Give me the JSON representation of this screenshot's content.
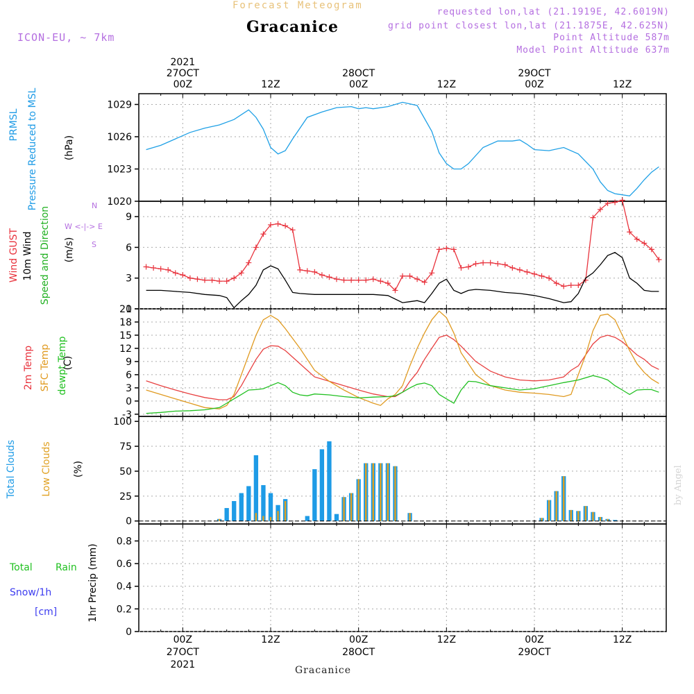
{
  "header": {
    "subtitle": "Forecast Meteogram",
    "location": "Gracanice",
    "model": "ICON-EU, ~ 7km",
    "info": [
      "requested lon,lat (21.1919E, 42.6019N)",
      "grid point closest lon,lat (21.1875E, 42.625N)",
      "Point Altitude 587m",
      "Model Point Altitude 637m"
    ]
  },
  "time_axis": {
    "top": [
      {
        "lines": [
          "2021",
          "27OCT",
          "00Z"
        ]
      },
      {
        "lines": [
          "12Z"
        ]
      },
      {
        "lines": [
          "28OCT",
          "00Z"
        ]
      },
      {
        "lines": [
          "12Z"
        ]
      },
      {
        "lines": [
          "29OCT",
          "00Z"
        ]
      },
      {
        "lines": [
          "12Z"
        ]
      }
    ],
    "bottom": [
      {
        "lines": [
          "00Z",
          "27OCT",
          "2021"
        ]
      },
      {
        "lines": [
          "12Z"
        ]
      },
      {
        "lines": [
          "00Z",
          "28OCT"
        ]
      },
      {
        "lines": [
          "12Z"
        ]
      },
      {
        "lines": [
          "00Z",
          "29OCT"
        ]
      },
      {
        "lines": [
          "12Z"
        ]
      }
    ],
    "hours": [
      0,
      12,
      24,
      36,
      48,
      60
    ]
  },
  "footer": {
    "location": "Gracanice",
    "watermark": "by Angel"
  },
  "panels": {
    "pressure": {
      "labels": [
        "PRMSL",
        "Pressure Reduced to MSL",
        "(hPa)"
      ],
      "label_colors": [
        "#1e9be6",
        "#1e9be6",
        "#000000"
      ]
    },
    "wind": {
      "labels": [
        "Wind GUST",
        "10m Wind",
        "Speed and Direction",
        "(m/s)"
      ],
      "label_colors": [
        "#e8323c",
        "#000000",
        "#20b020",
        "#000000"
      ],
      "compass": [
        "N",
        "W <-|-> E",
        "S"
      ]
    },
    "temp": {
      "labels": [
        "2m Temp",
        "SFC Temp",
        "dewpt Temp",
        "(C)"
      ],
      "label_colors": [
        "#e8323c",
        "#e09a20",
        "#20c020",
        "#000000"
      ]
    },
    "clouds": {
      "labels": [
        "Total Clouds",
        "Low Clouds",
        "(%)"
      ],
      "label_colors": [
        "#1e9be6",
        "#e0a020",
        "#000000"
      ]
    },
    "precip": {
      "legend": [
        "Total",
        "Rain",
        "Snow/1h",
        "[cm]"
      ],
      "legend_colors": [
        "#20c020",
        "#20c020",
        "#3c3cf0",
        "#3c3cf0"
      ],
      "ylabel": "1hr Precip (mm)"
    }
  },
  "colors": {
    "pressure": "#1ea0e6",
    "gust": "#e8323c",
    "wind": "#000000",
    "temp2m": "#e84040",
    "sfc": "#e09a20",
    "dewpt": "#20c020",
    "total_clouds": "#1e9be6",
    "low_clouds": "#e0a020"
  },
  "chart_data": [
    {
      "type": "line",
      "title": "PRMSL Pressure Reduced to MSL",
      "ylabel": "(hPa)",
      "ylim": [
        1020,
        1030
      ],
      "yticks": [
        1020,
        1023,
        1026,
        1029
      ],
      "x_unit": "hours from 27OCT 00Z",
      "series": [
        {
          "name": "PRMSL",
          "x": [
            -5,
            -3,
            -1,
            1,
            3,
            5,
            7,
            9,
            10,
            11,
            12,
            13,
            14,
            15,
            17,
            19,
            21,
            23,
            24,
            25,
            26,
            28,
            30,
            32,
            34,
            35,
            36,
            37,
            38,
            39,
            41,
            43,
            45,
            46,
            47,
            48,
            50,
            52,
            54,
            56,
            57,
            58,
            59,
            61,
            62,
            63,
            64,
            65
          ],
          "y": [
            1024.8,
            1025.2,
            1025.8,
            1026.4,
            1026.8,
            1027.1,
            1027.6,
            1028.5,
            1027.8,
            1026.7,
            1025,
            1024.4,
            1024.7,
            1025.8,
            1027.8,
            1028.3,
            1028.7,
            1028.8,
            1028.6,
            1028.7,
            1028.6,
            1028.8,
            1029.2,
            1028.9,
            1026.5,
            1024.5,
            1023.5,
            1023,
            1023,
            1023.5,
            1025,
            1025.6,
            1025.6,
            1025.7,
            1025.3,
            1024.8,
            1024.7,
            1025,
            1024.4,
            1023,
            1021.8,
            1021,
            1020.7,
            1020.5,
            1021.2,
            1022,
            1022.7,
            1023.2
          ]
        }
      ],
      "grid": true
    },
    {
      "type": "line",
      "title": "Wind GUST / 10m Wind",
      "ylabel": "(m/s)",
      "ylim": [
        0,
        10.5
      ],
      "yticks": [
        0,
        3,
        6,
        9
      ],
      "x_unit": "hours from 27OCT 00Z",
      "series": [
        {
          "name": "Wind GUST",
          "x": [
            -5,
            -4,
            -3,
            -2,
            -1,
            0,
            1,
            2,
            3,
            4,
            5,
            6,
            7,
            8,
            9,
            10,
            11,
            12,
            13,
            14,
            15,
            16,
            17,
            18,
            19,
            20,
            21,
            22,
            23,
            24,
            25,
            26,
            27,
            28,
            29,
            30,
            31,
            32,
            33,
            34,
            35,
            36,
            37,
            38,
            39,
            40,
            41,
            42,
            43,
            44,
            45,
            46,
            47,
            48,
            49,
            50,
            51,
            52,
            53,
            54,
            55,
            56,
            57,
            58,
            59,
            60,
            61,
            62,
            63,
            64,
            65
          ],
          "y": [
            4.1,
            4.0,
            3.9,
            3.8,
            3.5,
            3.3,
            3.0,
            2.9,
            2.8,
            2.8,
            2.7,
            2.7,
            3.0,
            3.5,
            4.5,
            6.0,
            7.3,
            8.2,
            8.3,
            8.1,
            7.7,
            3.8,
            3.7,
            3.6,
            3.3,
            3.1,
            2.9,
            2.8,
            2.8,
            2.8,
            2.8,
            2.9,
            2.7,
            2.5,
            1.8,
            3.2,
            3.2,
            2.9,
            2.6,
            3.5,
            5.8,
            5.9,
            5.8,
            4.0,
            4.1,
            4.4,
            4.5,
            4.5,
            4.4,
            4.3,
            4.0,
            3.8,
            3.6,
            3.4,
            3.2,
            3.0,
            2.5,
            2.2,
            2.3,
            2.3,
            2.8,
            8.9,
            9.7,
            10.3,
            10.4,
            10.6,
            7.5,
            6.8,
            6.4,
            5.8,
            4.8
          ]
        },
        {
          "name": "10m Wind",
          "x": [
            -5,
            -3,
            -1,
            1,
            3,
            5,
            6,
            7,
            8,
            9,
            10,
            11,
            12,
            13,
            14,
            15,
            16,
            18,
            20,
            22,
            24,
            26,
            28,
            30,
            31,
            32,
            33,
            34,
            35,
            36,
            37,
            38,
            39,
            40,
            42,
            44,
            46,
            48,
            50,
            52,
            53,
            54,
            55,
            56,
            57,
            58,
            59,
            60,
            61,
            62,
            63,
            64,
            65
          ],
          "y": [
            1.8,
            1.8,
            1.7,
            1.6,
            1.4,
            1.3,
            1.1,
            0.1,
            0.8,
            1.4,
            2.3,
            3.8,
            4.2,
            3.9,
            2.8,
            1.6,
            1.5,
            1.4,
            1.4,
            1.4,
            1.4,
            1.4,
            1.3,
            0.6,
            0.7,
            0.8,
            0.6,
            1.5,
            2.5,
            2.9,
            1.8,
            1.5,
            1.8,
            1.9,
            1.8,
            1.6,
            1.5,
            1.3,
            1.0,
            0.6,
            0.7,
            1.5,
            3.0,
            3.5,
            4.3,
            5.2,
            5.5,
            5.0,
            3.0,
            2.5,
            1.8,
            1.7,
            1.7
          ]
        }
      ],
      "grid": true
    },
    {
      "type": "line",
      "title": "2m Temp / SFC Temp / dewpt Temp",
      "ylabel": "(C)",
      "ylim": [
        -3.5,
        21
      ],
      "yticks": [
        -3,
        0,
        3,
        6,
        9,
        12,
        15,
        18,
        21
      ],
      "x_unit": "hours from 27OCT 00Z",
      "series": [
        {
          "name": "2m Temp",
          "x": [
            -5,
            -3,
            -1,
            1,
            3,
            5,
            6,
            7,
            8,
            9,
            10,
            11,
            12,
            13,
            14,
            16,
            18,
            20,
            22,
            24,
            26,
            28,
            29,
            30,
            31,
            32,
            33,
            34,
            35,
            36,
            37,
            38,
            40,
            42,
            44,
            46,
            48,
            50,
            52,
            53,
            54,
            55,
            56,
            57,
            58,
            59,
            60,
            61,
            62,
            63,
            64,
            65
          ],
          "y": [
            4.6,
            3.5,
            2.5,
            1.6,
            0.8,
            0.3,
            0.3,
            1.0,
            3.5,
            6.5,
            9.5,
            11.8,
            12.6,
            12.5,
            11.5,
            8.5,
            5.5,
            4.5,
            3.5,
            2.5,
            1.6,
            1.0,
            1.0,
            2.0,
            4.5,
            6.5,
            9.5,
            12.0,
            14.5,
            15.0,
            14.0,
            12.5,
            9.0,
            6.8,
            5.5,
            4.8,
            4.6,
            4.8,
            5.5,
            7.0,
            8.0,
            10.5,
            13.0,
            14.5,
            15.0,
            14.5,
            13.5,
            12.0,
            10.5,
            9.5,
            8.0,
            7.2
          ]
        },
        {
          "name": "SFC Temp",
          "x": [
            -5,
            -3,
            -1,
            1,
            3,
            5,
            6,
            7,
            8,
            9,
            10,
            11,
            12,
            13,
            14,
            16,
            18,
            20,
            22,
            24,
            26,
            27,
            28,
            29,
            30,
            31,
            32,
            33,
            34,
            35,
            36,
            37,
            38,
            40,
            42,
            44,
            46,
            48,
            50,
            52,
            53,
            54,
            55,
            56,
            57,
            58,
            59,
            60,
            61,
            62,
            63,
            64,
            65
          ],
          "y": [
            2.5,
            1.5,
            0.5,
            -0.5,
            -1.5,
            -1.8,
            -1.0,
            1.5,
            6.0,
            10.5,
            15.0,
            18.5,
            19.5,
            18.5,
            16.5,
            12.0,
            7.0,
            4.5,
            2.5,
            0.8,
            -0.5,
            -1.0,
            0.5,
            1.5,
            3.5,
            8.0,
            12.0,
            15.5,
            18.5,
            20.5,
            19.0,
            15.5,
            11.0,
            6.0,
            3.5,
            2.5,
            2.0,
            1.8,
            1.5,
            1.0,
            1.5,
            6.0,
            10.5,
            16.0,
            19.5,
            19.8,
            18.5,
            15.0,
            11.5,
            8.5,
            6.5,
            5.0,
            4.0
          ]
        },
        {
          "name": "dewpt Temp",
          "x": [
            -5,
            -3,
            -1,
            1,
            3,
            5,
            6,
            7,
            8,
            9,
            10,
            11,
            12,
            13,
            14,
            15,
            16,
            17,
            18,
            20,
            22,
            24,
            26,
            28,
            29,
            30,
            31,
            32,
            33,
            34,
            35,
            36,
            37,
            38,
            39,
            40,
            42,
            44,
            46,
            48,
            50,
            52,
            54,
            56,
            57,
            58,
            59,
            60,
            61,
            62,
            63,
            64,
            65
          ],
          "y": [
            -2.8,
            -2.6,
            -2.3,
            -2.2,
            -2.0,
            -1.5,
            -0.5,
            0.5,
            1.5,
            2.5,
            2.6,
            2.8,
            3.5,
            4.2,
            3.5,
            2.0,
            1.4,
            1.2,
            1.6,
            1.4,
            1.0,
            0.7,
            0.9,
            1.0,
            1.2,
            2.0,
            3.0,
            3.8,
            4.1,
            3.5,
            1.5,
            0.5,
            -0.5,
            2.5,
            4.5,
            4.4,
            3.5,
            3.0,
            2.5,
            2.8,
            3.5,
            4.2,
            4.8,
            5.8,
            5.4,
            4.8,
            3.5,
            2.5,
            1.5,
            2.5,
            2.6,
            2.6,
            2.0
          ]
        }
      ],
      "grid": true
    },
    {
      "type": "bar",
      "title": "Total Clouds / Low Clouds",
      "ylabel": "(%)",
      "ylim": [
        -3,
        105
      ],
      "yticks": [
        0,
        25,
        50,
        75,
        100
      ],
      "x_unit": "hours from 27OCT 00Z",
      "series": [
        {
          "name": "Total Clouds",
          "x": [
            5,
            6,
            7,
            8,
            9,
            10,
            11,
            12,
            13,
            14,
            17,
            18,
            19,
            20,
            21,
            22,
            23,
            24,
            25,
            26,
            27,
            28,
            29,
            31,
            49,
            50,
            51,
            52,
            53,
            54,
            55,
            56,
            57,
            58,
            59
          ],
          "y": [
            2,
            13,
            20,
            28,
            35,
            66,
            36,
            28,
            16,
            22,
            5,
            52,
            72,
            80,
            7,
            24,
            28,
            42,
            58,
            58,
            58,
            58,
            55,
            8,
            3,
            21,
            30,
            45,
            11,
            10,
            15,
            9,
            4,
            2,
            1
          ]
        },
        {
          "name": "Low Clouds",
          "x": [
            5,
            10,
            11,
            12,
            13,
            14,
            22,
            23,
            24,
            25,
            26,
            27,
            28,
            29,
            31,
            49,
            50,
            51,
            52,
            53,
            54,
            55,
            56,
            57,
            58
          ],
          "y": [
            2,
            8,
            5,
            4,
            10,
            20,
            24,
            28,
            42,
            58,
            58,
            58,
            58,
            55,
            8,
            3,
            21,
            30,
            45,
            11,
            10,
            15,
            9,
            4,
            2
          ]
        }
      ],
      "grid": true
    },
    {
      "type": "bar",
      "title": "1hr Precip",
      "ylabel": "1hr Precip (mm)",
      "ylim": [
        0,
        0.95
      ],
      "yticks": [
        0,
        0.2,
        0.4,
        0.6,
        0.8
      ],
      "ytick_labels": [
        "0",
        "0.2",
        "0.4",
        "0.6",
        "0.8"
      ],
      "series": [],
      "grid": true
    }
  ]
}
